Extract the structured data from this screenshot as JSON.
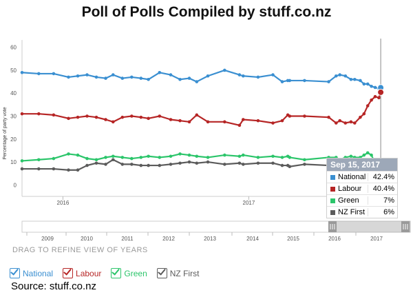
{
  "page": {
    "title": "Poll of Polls Compiled by stuff.co.nz",
    "source": "Source: stuff.co.nz",
    "drag_label": "DRAG TO REFINE VIEW OF YEARS"
  },
  "legend": [
    {
      "label": "National",
      "color": "#3a8fd1"
    },
    {
      "label": "Labour",
      "color": "#b62525"
    },
    {
      "label": "Green",
      "color": "#2bc56a"
    },
    {
      "label": "NZ First",
      "color": "#5b5b5b"
    }
  ],
  "tooltip": {
    "date": "Sep 15, 2017",
    "rows": [
      {
        "name": "National",
        "value": "42.4%",
        "color": "#3a8fd1"
      },
      {
        "name": "Labour",
        "value": "40.4%",
        "color": "#b62525"
      },
      {
        "name": "Green",
        "value": "7%",
        "color": "#2bc56a"
      },
      {
        "name": "NZ First",
        "value": "6%",
        "color": "#5b5b5b"
      }
    ]
  },
  "chart_data": {
    "type": "line",
    "ylabel": "Percentage of party vote",
    "ylim": [
      -5,
      62
    ],
    "yticks": [
      0,
      10,
      20,
      30,
      40,
      50,
      60
    ],
    "xlim": [
      2015.78,
      2017.78
    ],
    "x_tick_labels": [
      {
        "label": "2016",
        "x": 2016.0
      },
      {
        "label": "2017",
        "x": 2017.0
      }
    ],
    "grid": false,
    "x": [
      2015.78,
      2015.87,
      2015.95,
      2016.03,
      2016.08,
      2016.13,
      2016.18,
      2016.23,
      2016.27,
      2016.32,
      2016.37,
      2016.42,
      2016.46,
      2016.52,
      2016.58,
      2016.63,
      2016.68,
      2016.72,
      2016.78,
      2016.87,
      2016.95,
      2016.97,
      2017.05,
      2017.13,
      2017.18,
      2017.21,
      2017.22,
      2017.3,
      2017.43,
      2017.47,
      2017.49,
      2017.52,
      2017.55,
      2017.57,
      2017.6,
      2017.62,
      2017.64,
      2017.66,
      2017.68,
      2017.7,
      2017.71
    ],
    "series": [
      {
        "name": "National",
        "color": "#3a8fd1",
        "values": [
          49,
          48.5,
          48.5,
          47,
          47.5,
          48,
          47,
          46.5,
          48,
          46.5,
          47,
          46.5,
          46,
          49,
          48,
          46,
          46.5,
          45,
          47.5,
          50,
          48,
          47.5,
          47,
          48,
          45,
          45.5,
          45.5,
          45.5,
          45,
          47.5,
          48,
          47.5,
          46,
          46,
          45.5,
          44,
          44,
          43,
          42.5,
          42,
          42.4
        ]
      },
      {
        "name": "Labour",
        "color": "#b62525",
        "values": [
          31,
          31,
          30.5,
          29,
          29.5,
          30,
          29.5,
          28.5,
          27.5,
          29.5,
          30,
          29.5,
          29,
          30,
          28.5,
          28,
          27.5,
          30.5,
          27.5,
          27.5,
          26,
          28.5,
          28,
          27,
          28,
          30.5,
          30,
          30,
          29.5,
          27,
          28,
          27,
          27.5,
          27,
          29.5,
          31,
          34.5,
          37,
          38.5,
          38,
          40.4
        ]
      },
      {
        "name": "Green",
        "color": "#2bc56a",
        "values": [
          10.5,
          11,
          11.5,
          13.5,
          13,
          11.5,
          11,
          12,
          12.5,
          12,
          11.5,
          12,
          12.5,
          12,
          12.5,
          13.5,
          13,
          12.5,
          12,
          13,
          12.5,
          13,
          12,
          12.5,
          12,
          12.5,
          12,
          11,
          12,
          12,
          11,
          12,
          12.5,
          12,
          12,
          13,
          14,
          13,
          9.5,
          8,
          7
        ]
      },
      {
        "name": "NZ First",
        "color": "#5b5b5b",
        "values": [
          7,
          7,
          7,
          6.5,
          6.5,
          8.5,
          9.5,
          9,
          11,
          9,
          9,
          8.5,
          8.5,
          8.5,
          9,
          9.5,
          10,
          9.5,
          10,
          9,
          9.5,
          9,
          9.5,
          9.5,
          8.5,
          8.5,
          8,
          9,
          8.5,
          9,
          9,
          9,
          9,
          8.5,
          9,
          8.5,
          8.5,
          8.5,
          7.5,
          6.5,
          6
        ]
      }
    ]
  },
  "navigator": {
    "years": [
      "2009",
      "2010",
      "2011",
      "2012",
      "2013",
      "2014",
      "2015",
      "2016",
      "2017"
    ]
  }
}
